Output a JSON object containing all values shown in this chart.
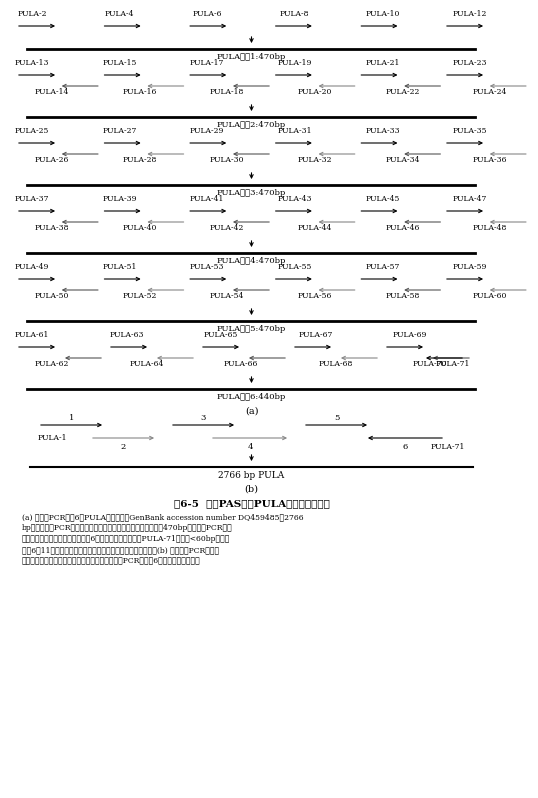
{
  "title": "图6-5  基于PAS法的PULA基因全长的合成",
  "caption_lines": [
    "(a) 第一次PCR合成6个PULA基因片段（GenBank accession number DQ459485；2766",
    "bp）。第一次PCR合成的片段覆盖了整个基因，每个片段长度为470bp。第二次PCR把所",
    "有的片段装配成全基因。因为片段6是最后一个片段，引物PULA-71的长度<60bp，因此",
    "片段6有11个碱核苷酸。最后一个反向引物的寡核苷酸是奇数。(b) 在第二次PCR中，使",
    "用两个最外端的寡核苷酸作为引物，把所有第一次PCR产生的6个片段装配成全基因"
  ],
  "groups": [
    {
      "top_labels": [
        "PULA-2",
        "PULA-4",
        "PULA-6",
        "PULA-8",
        "PULA-10",
        "PULA-12"
      ],
      "bottom_labels": [],
      "result_label": "PULA片段1:470bp"
    },
    {
      "top_labels": [
        "PULA-13",
        "PULA-15",
        "PULA-17",
        "PULA-19",
        "PULA-21",
        "PULA-23"
      ],
      "bottom_labels": [
        "PULA-14",
        "PULA-16",
        "PULA-18",
        "PULA-20",
        "PULA-22",
        "PULA-24"
      ],
      "result_label": "PULA片段2:470bp"
    },
    {
      "top_labels": [
        "PULA-25",
        "PULA-27",
        "PULA-29",
        "PULA-31",
        "PULA-33",
        "PULA-35"
      ],
      "bottom_labels": [
        "PULA-26",
        "PULA-28",
        "PULA-30",
        "PULA-32",
        "PULA-34",
        "PULA-36"
      ],
      "result_label": "PULA片段3:470bp"
    },
    {
      "top_labels": [
        "PULA-37",
        "PULA-39",
        "PULA-41",
        "PULA-43",
        "PULA-45",
        "PULA-47"
      ],
      "bottom_labels": [
        "PULA-38",
        "PULA-40",
        "PULA-42",
        "PULA-44",
        "PULA-46",
        "PULA-48"
      ],
      "result_label": "PULA片段4:470bp"
    },
    {
      "top_labels": [
        "PULA-49",
        "PULA-51",
        "PULA-53",
        "PULA-55",
        "PULA-57",
        "PULA-59"
      ],
      "bottom_labels": [
        "PULA-50",
        "PULA-52",
        "PULA-54",
        "PULA-56",
        "PULA-58",
        "PULA-60"
      ],
      "result_label": "PULA片段5:470bp"
    },
    {
      "top_labels": [
        "PULA-61",
        "PULA-63",
        "PULA-65",
        "PULA-67",
        "PULA-69"
      ],
      "bottom_labels": [
        "PULA-62",
        "PULA-64",
        "PULA-66",
        "PULA-68",
        "PULA-70"
      ],
      "extra_label": "PULA-71",
      "result_label": "PULA片段6:440bp"
    }
  ],
  "part_b_result": "2766 bp PULA",
  "part_b_left": "PULA-1",
  "part_b_right": "PULA-71",
  "bg_color": "#ffffff",
  "arrow_color_dark": "#000000",
  "arrow_color_gray": "#888888",
  "line_color": "#000000",
  "text_color": "#000000"
}
